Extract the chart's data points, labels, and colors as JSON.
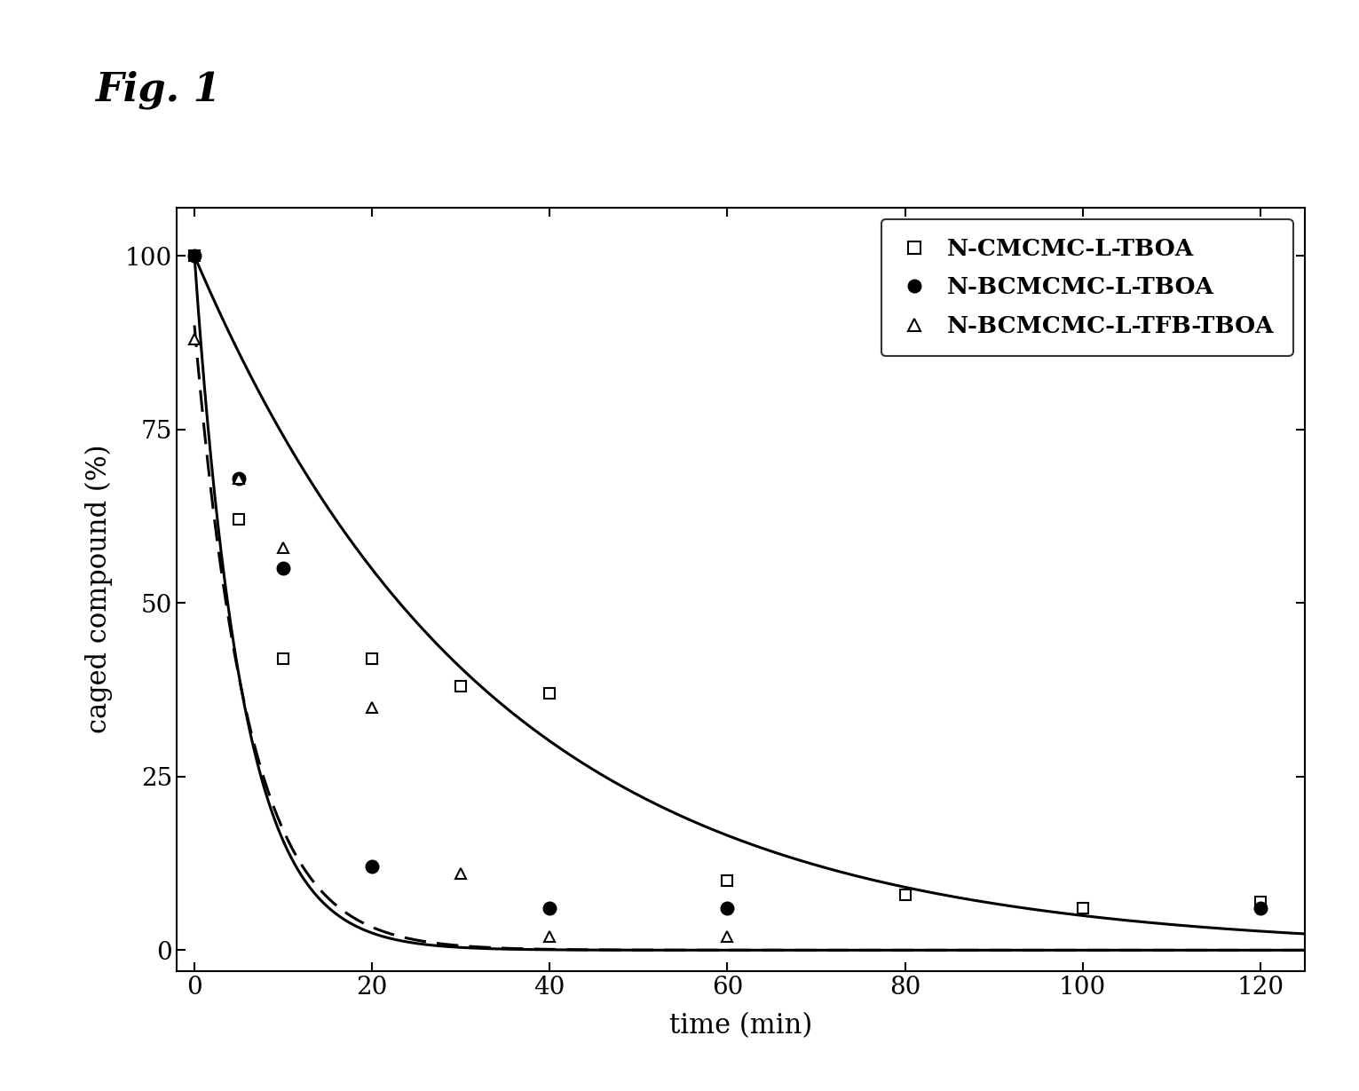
{
  "title": "Fig. 1",
  "xlabel": "time (min)",
  "ylabel": "caged compound (%)",
  "xlim": [
    -2,
    125
  ],
  "ylim": [
    -3,
    107
  ],
  "xticks": [
    0,
    20,
    40,
    60,
    80,
    100,
    120
  ],
  "yticks": [
    0,
    25,
    50,
    75,
    100
  ],
  "background_color": "#ffffff",
  "series1_label": "N-CMCMC-L-TBOA",
  "series2_label": "N-BCMCMC-L-TBOA",
  "series3_label": "N-BCMCMC-L-TFB-TBOA",
  "series1_x": [
    0,
    5,
    10,
    20,
    30,
    40,
    60,
    80,
    100,
    120
  ],
  "series1_y": [
    100,
    62,
    42,
    42,
    38,
    37,
    10,
    8,
    6,
    7
  ],
  "series2_x": [
    0,
    5,
    10,
    20,
    40,
    60,
    120
  ],
  "series2_y": [
    100,
    68,
    55,
    12,
    6,
    6,
    6
  ],
  "series3_x": [
    0,
    5,
    10,
    20,
    30,
    40,
    60
  ],
  "series3_y": [
    88,
    68,
    58,
    35,
    11,
    2,
    2
  ],
  "curve1_k": 0.03,
  "curve1_A": 100,
  "curve2_k": 0.185,
  "curve2_A": 100,
  "curve3_k": 0.165,
  "curve3_A": 90
}
